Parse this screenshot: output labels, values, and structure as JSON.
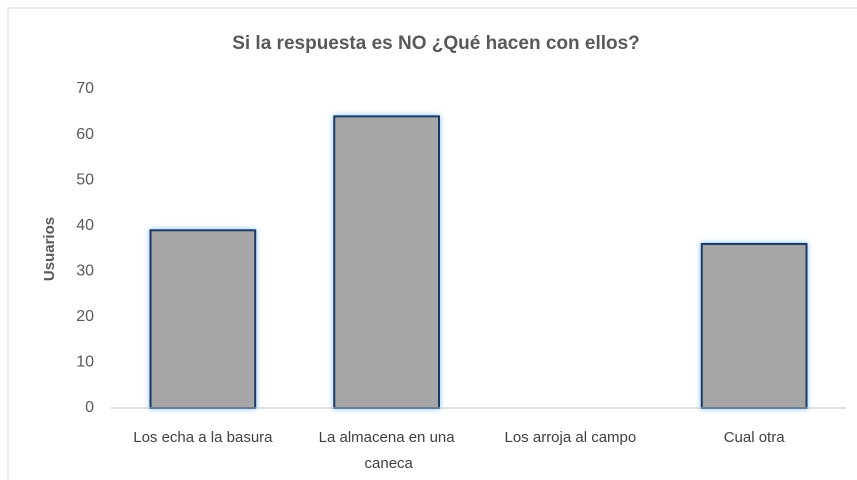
{
  "chart_data": {
    "type": "bar",
    "title": "Si la respuesta es NO ¿Qué hacen con ellos?",
    "y_label": "Usuarios",
    "categories": [
      "Los echa a la basura",
      "La almacena en una caneca",
      "Los arroja al campo",
      "Cual otra"
    ],
    "values": [
      39,
      64,
      0,
      36
    ],
    "color": "#a6a6a6",
    "edge_color": "#1f3864",
    "ylim": [
      0,
      70
    ],
    "yticks": [
      0,
      10,
      20,
      30,
      40,
      50,
      60,
      70
    ],
    "grid": false
  }
}
